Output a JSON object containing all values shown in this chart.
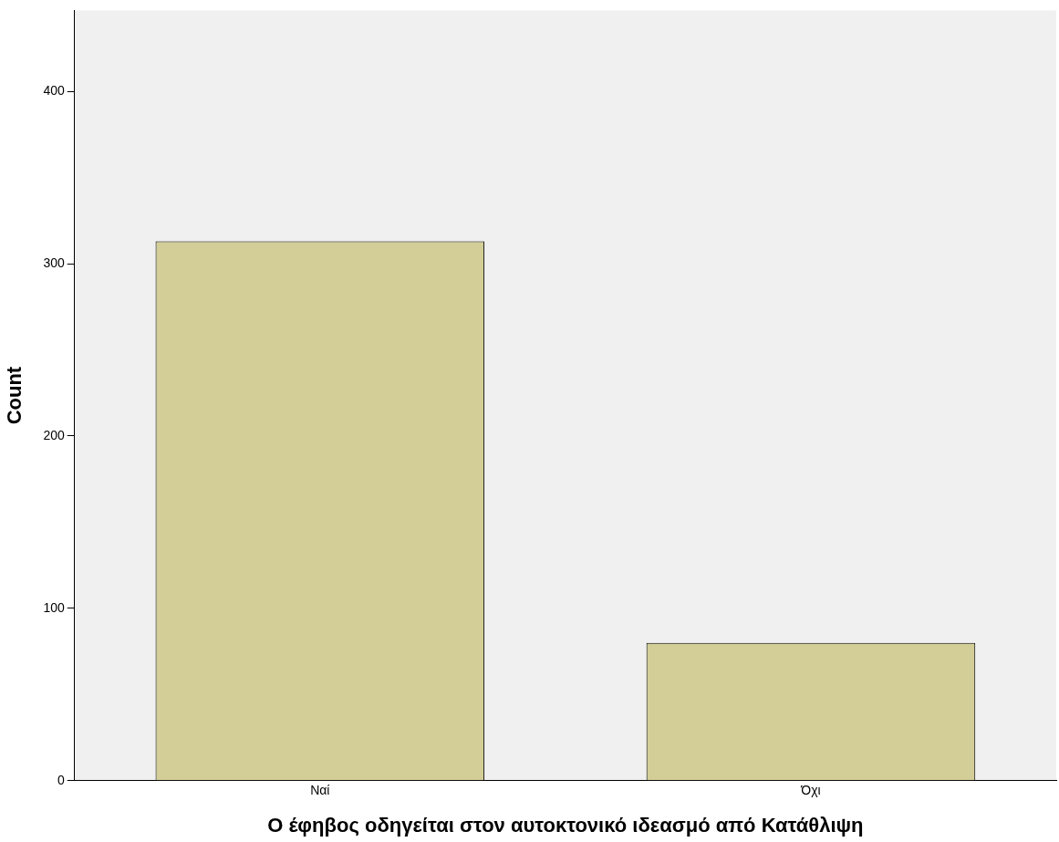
{
  "chart_data": {
    "type": "bar",
    "xlabel": "Ο έφηβος οδηγείται στον αυτοκτονικό ιδεασμό από Κατάθλιψη",
    "ylabel": "Count",
    "categories": [
      "Ναί",
      "Όχι"
    ],
    "values": [
      313,
      80
    ],
    "color": "#d3ce97",
    "ylim": [
      0,
      447
    ],
    "yticks": [
      0,
      100,
      200,
      300,
      400
    ],
    "grid": false,
    "legend": false
  }
}
